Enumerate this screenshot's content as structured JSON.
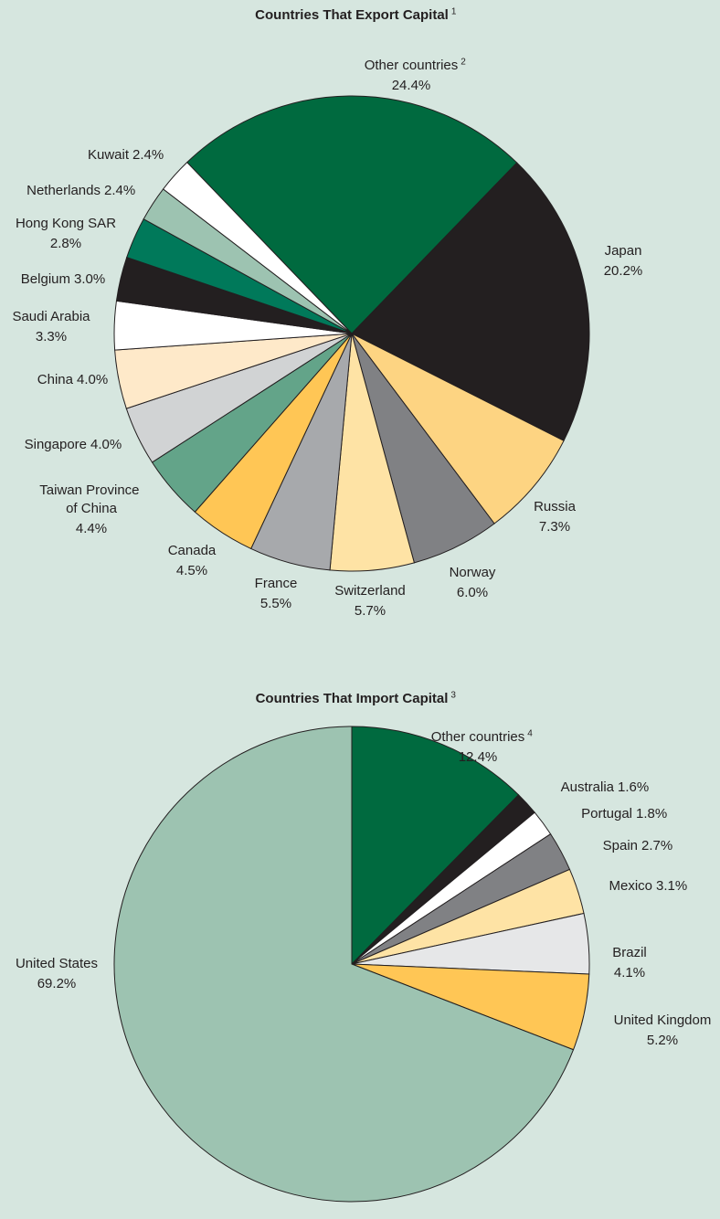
{
  "chart_data": [
    {
      "type": "pie",
      "title": "Countries That Export Capital",
      "title_note": "1",
      "categories": [
        "Other countries",
        "Japan",
        "Russia",
        "Norway",
        "Switzerland",
        "France",
        "Canada",
        "Taiwan Province of China",
        "Singapore",
        "China",
        "Saudi Arabia",
        "Belgium",
        "Hong Kong SAR",
        "Netherlands",
        "Kuwait"
      ],
      "category_notes": [
        "2",
        null,
        null,
        null,
        null,
        null,
        null,
        null,
        null,
        null,
        null,
        null,
        null,
        null,
        null
      ],
      "values": [
        24.4,
        20.2,
        7.3,
        6.0,
        5.7,
        5.5,
        4.5,
        4.4,
        4.0,
        4.0,
        3.3,
        3.0,
        2.8,
        2.4,
        2.4
      ],
      "value_labels": [
        "24.4%",
        "20.2%",
        "7.3%",
        "6.0%",
        "5.7%",
        "5.5%",
        "4.5%",
        "4.4%",
        "4.0%",
        "4.0%",
        "3.3%",
        "3.0%",
        "2.8%",
        "2.4%",
        "2.4%"
      ],
      "colors": [
        "#006a3f",
        "#231f20",
        "#fdd482",
        "#808184",
        "#fee3a5",
        "#a7a9ac",
        "#ffc655",
        "#63a489",
        "#d1d3d4",
        "#fee9c9",
        "#ffffff",
        "#231f20",
        "#00795a",
        "#9dc3b1",
        "#ffffff"
      ]
    },
    {
      "type": "pie",
      "title": "Countries That Import Capital",
      "title_note": "3",
      "categories": [
        "Other countries",
        "Australia",
        "Portugal",
        "Spain",
        "Mexico",
        "Brazil",
        "United Kingdom",
        "United States"
      ],
      "category_notes": [
        "4",
        null,
        null,
        null,
        null,
        null,
        null,
        null
      ],
      "values": [
        12.4,
        1.6,
        1.8,
        2.7,
        3.1,
        4.1,
        5.2,
        69.2
      ],
      "value_labels": [
        "12.4%",
        "1.6%",
        "1.8%",
        "2.7%",
        "3.1%",
        "4.1%",
        "5.2%",
        "69.2%"
      ],
      "colors": [
        "#006a3f",
        "#231f20",
        "#ffffff",
        "#808184",
        "#fee3a5",
        "#e6e7e8",
        "#ffc655",
        "#9dc3b1"
      ]
    }
  ]
}
